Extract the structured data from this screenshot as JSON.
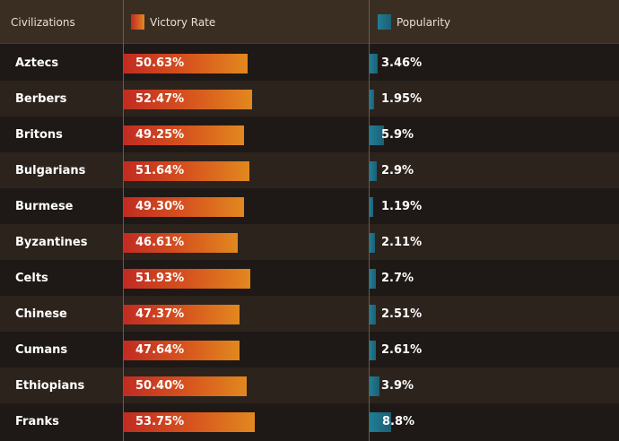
{
  "header": {
    "col_civ": "Civilizations",
    "col_victory": "Victory Rate",
    "col_popularity": "Popularity"
  },
  "colors": {
    "victory_start": "#c12c22",
    "victory_end": "#e2881f",
    "popularity": "#1f7e95",
    "row_dark": "#1e1916",
    "row_light": "#2c231d",
    "header_bg": "#3a2e23"
  },
  "chart_data": {
    "type": "bar",
    "categories": [
      "Aztecs",
      "Berbers",
      "Britons",
      "Bulgarians",
      "Burmese",
      "Byzantines",
      "Celts",
      "Chinese",
      "Cumans",
      "Ethiopians",
      "Franks"
    ],
    "series": [
      {
        "name": "Victory Rate",
        "values": [
          50.63,
          52.47,
          49.25,
          51.64,
          49.3,
          46.61,
          51.93,
          47.37,
          47.64,
          50.4,
          53.75
        ],
        "labels": [
          "50.63%",
          "52.47%",
          "49.25%",
          "51.64%",
          "49.30%",
          "46.61%",
          "51.93%",
          "47.37%",
          "47.64%",
          "50.40%",
          "53.75%"
        ]
      },
      {
        "name": "Popularity",
        "values": [
          3.46,
          1.95,
          5.9,
          2.9,
          1.19,
          2.11,
          2.7,
          2.51,
          2.61,
          3.9,
          8.8
        ],
        "labels": [
          "3.46%",
          "1.95%",
          "5.9%",
          "2.9%",
          "1.19%",
          "2.11%",
          "2.7%",
          "2.51%",
          "2.61%",
          "3.9%",
          "8.8%"
        ]
      }
    ]
  }
}
